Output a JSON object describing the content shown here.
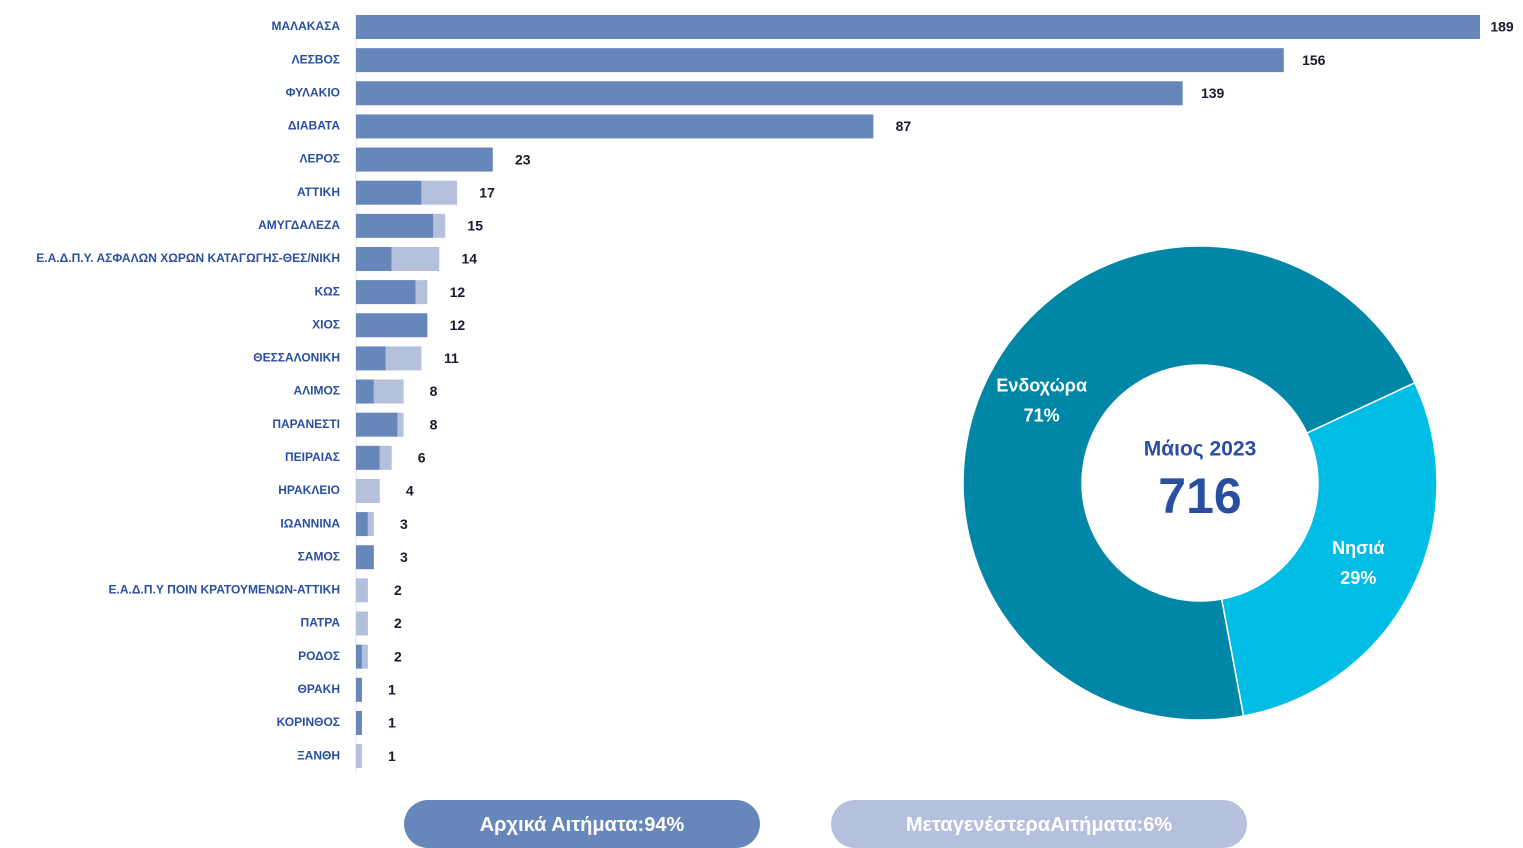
{
  "chart_data": [
    {
      "type": "bar",
      "orientation": "horizontal",
      "stacked": true,
      "categories": [
        "ΜΑΛΑΚΑΣΑ",
        "ΛΕΣΒΟΣ",
        "ΦΥΛΑΚΙΟ",
        "ΔΙΑΒΑΤΑ",
        "ΛΕΡΟΣ",
        "ΑΤΤΙΚΗ",
        "ΑΜΥΓΔΑΛΕΖΑ",
        "Ε.Α.Δ.Π.Υ. ΑΣΦΑΛΩΝ ΧΩΡΩΝ ΚΑΤΑΓΩΓΗΣ-ΘΕΣ/ΝΙΚΗ",
        "ΚΩΣ",
        "ΧΙΟΣ",
        "ΘΕΣΣΑΛΟΝΙΚΗ",
        "ΑΛΙΜΟΣ",
        "ΠΑΡΑΝΕΣΤΙ",
        "ΠΕΙΡΑΙΑΣ",
        "ΗΡΑΚΛΕΙΟ",
        "ΙΩΑΝΝΙΝΑ",
        "ΣΑΜΟΣ",
        "Ε.Α.Δ.Π.Υ ΠΟΙΝ ΚΡΑΤΟΥΜΕΝΩΝ-ΑΤΤΙΚΗ",
        "ΠΑΤΡΑ",
        "ΡΟΔΟΣ",
        "ΘΡΑΚΗ",
        "ΚΟΡΙΝΘΟΣ",
        "ΞΑΝΘΗ"
      ],
      "series": [
        {
          "name": "Αρχικά Αιτήματα:",
          "share_label": "94%",
          "color": "#6787ba",
          "values": [
            189,
            156,
            139,
            87,
            23,
            11,
            13,
            6,
            10,
            12,
            5,
            3,
            7,
            4,
            0,
            2,
            3,
            0,
            0,
            1,
            1,
            1,
            0
          ]
        },
        {
          "name": "ΜεταγενέστεραΑιτήματα:",
          "share_label": "6%",
          "color": "#b4c0dc",
          "values": [
            0,
            0,
            0,
            0,
            0,
            6,
            2,
            8,
            2,
            0,
            6,
            5,
            1,
            2,
            4,
            1,
            0,
            2,
            2,
            1,
            0,
            0,
            1
          ]
        }
      ],
      "total_labels": [
        "189",
        "156",
        "139",
        "87",
        "23",
        "17",
        "15",
        "14",
        "12",
        "12",
        "11",
        "8",
        "8",
        "6",
        "4",
        "3",
        "3",
        "2",
        "2",
        "2",
        "1",
        "1",
        "1"
      ],
      "xlim": [
        0,
        189
      ]
    },
    {
      "type": "donut",
      "title": "Μάιος 2023",
      "total": "716",
      "categories": [
        "Ενδοχώρα",
        "Νησιά"
      ],
      "values": [
        71,
        29
      ],
      "value_labels": [
        "71%",
        "29%"
      ],
      "colors": [
        "#0087a8",
        "#00bde6"
      ]
    }
  ]
}
